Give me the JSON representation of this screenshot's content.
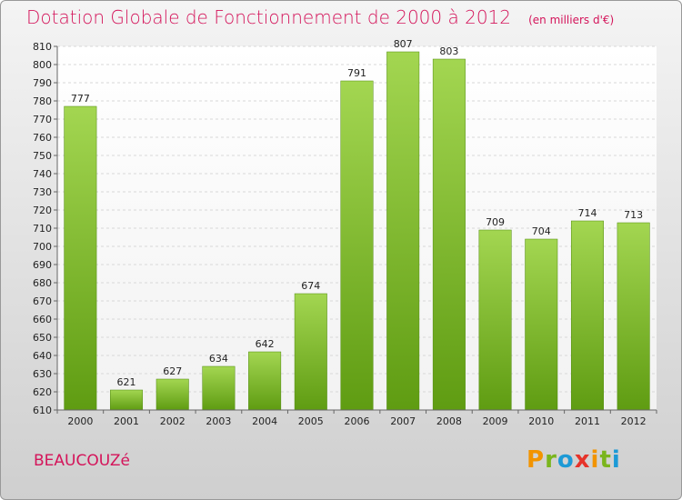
{
  "chart_data": {
    "type": "bar",
    "title": "Dotation Globale de Fonctionnement de 2000 à 2012",
    "subtitle": "(en milliers d'€)",
    "categories": [
      "2000",
      "2001",
      "2002",
      "2003",
      "2004",
      "2005",
      "2006",
      "2007",
      "2008",
      "2009",
      "2010",
      "2011",
      "2012"
    ],
    "values": [
      777,
      621,
      627,
      634,
      642,
      674,
      791,
      807,
      803,
      709,
      704,
      714,
      713
    ],
    "ylim": [
      610,
      810
    ],
    "yticks": [
      610,
      620,
      630,
      640,
      650,
      660,
      670,
      680,
      690,
      700,
      710,
      720,
      730,
      740,
      750,
      760,
      770,
      780,
      790,
      800,
      810
    ],
    "grid": true,
    "bar_color": "#7fbf2a"
  },
  "commune": "BEAUCOUZé",
  "brand": {
    "letters": [
      "P",
      "r",
      "o",
      "x",
      "i",
      "t",
      "i"
    ],
    "colors": [
      "#f29400",
      "#7ab51d",
      "#1d9ad6",
      "#e6332a",
      "#f29400",
      "#7ab51d",
      "#1d9ad6"
    ]
  }
}
